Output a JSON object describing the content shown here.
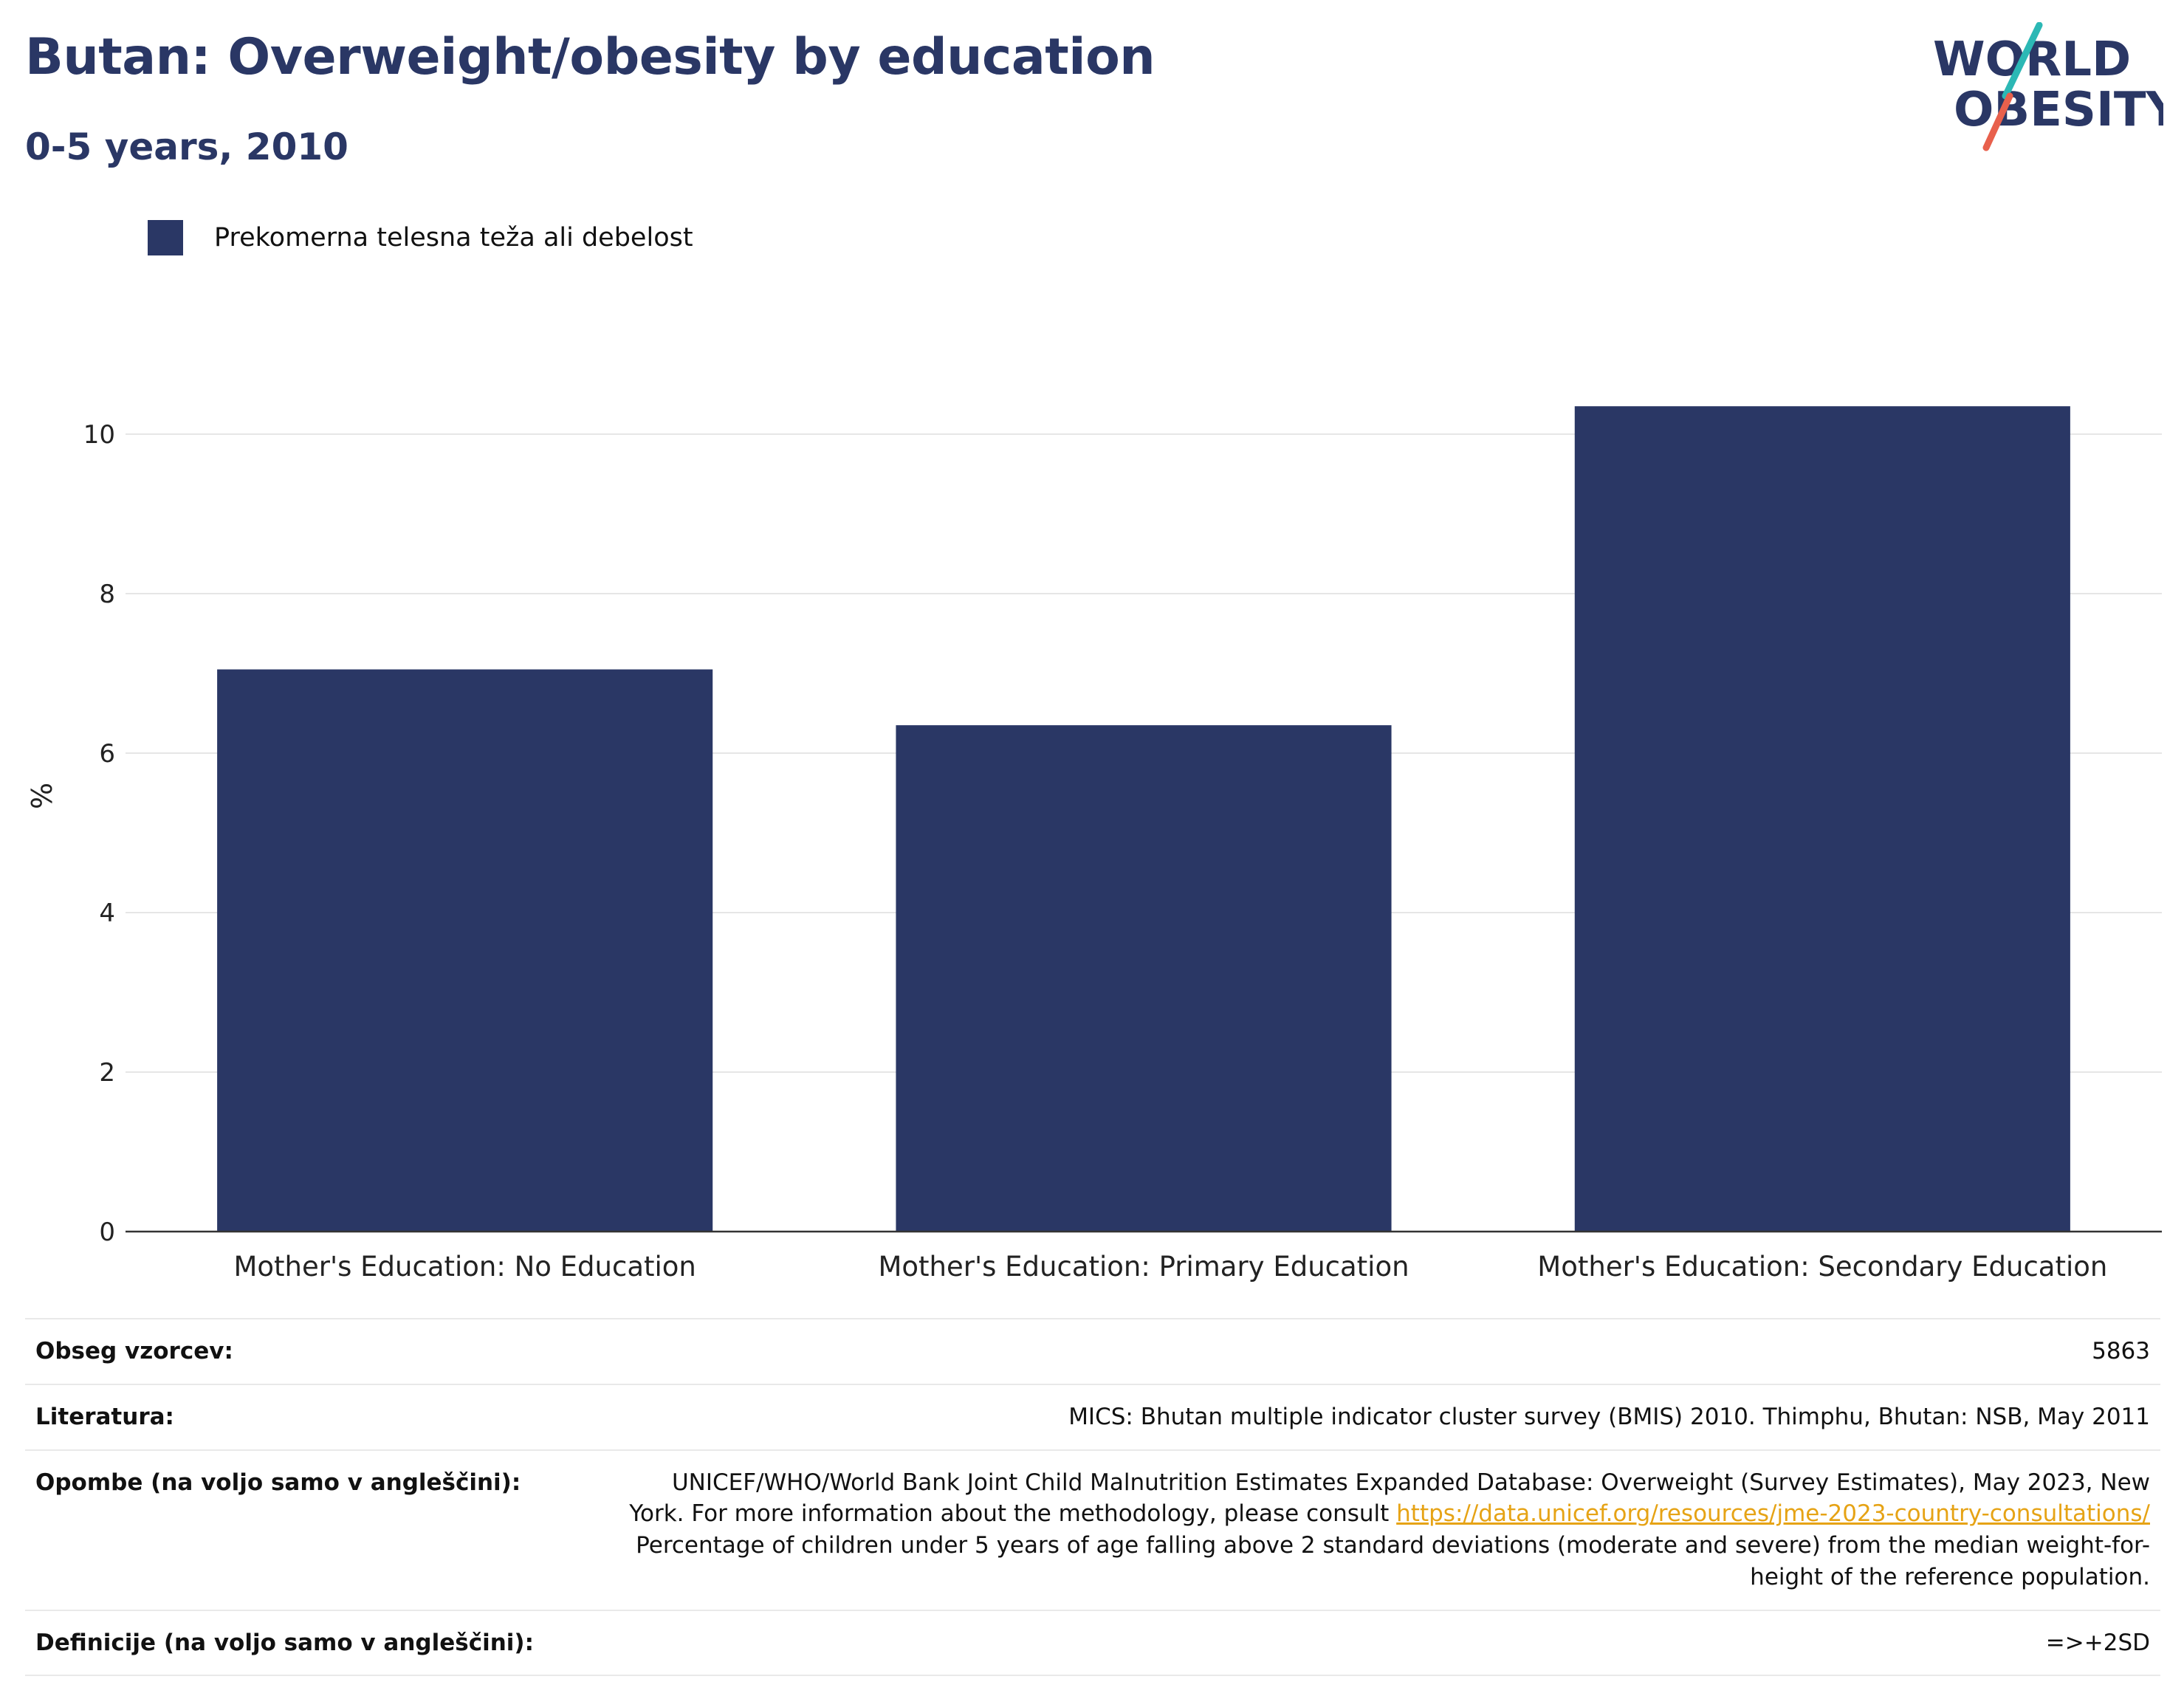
{
  "header": {
    "title": "Butan: Overweight/obesity by education",
    "subtitle": "0-5 years, 2010"
  },
  "logo": {
    "text_line1": "WORLD",
    "text_line2": "OBESITY",
    "colors": {
      "text": "#2a3765",
      "slash_top": "#2cb8b5",
      "slash_bottom": "#e8604c"
    }
  },
  "legend": {
    "label": "Prekomerna telesna teža ali debelost",
    "color": "#2a3765"
  },
  "chart_data": {
    "type": "bar",
    "categories": [
      "Mother's Education: No Education",
      "Mother's Education: Primary Education",
      "Mother's Education: Secondary Education"
    ],
    "series": [
      {
        "name": "Prekomerna telesna teža ali debelost",
        "values": [
          7.05,
          6.35,
          10.35
        ]
      }
    ],
    "ylabel": "%",
    "xlabel": "",
    "ylim": [
      0,
      11
    ],
    "yticks": [
      0,
      2,
      4,
      6,
      8,
      10
    ],
    "grid": true,
    "legend_position": "top-left",
    "bar_color": "#2a3765"
  },
  "info": {
    "sample_size_label": "Obseg vzorcev:",
    "sample_size_value": "5863",
    "literature_label": "Literatura:",
    "literature_value": "MICS: Bhutan multiple indicator cluster survey (BMIS) 2010. Thimphu, Bhutan: NSB, May 2011",
    "notes_label": "Opombe (na voljo samo v angleščini):",
    "notes_text_1": "UNICEF/WHO/World Bank Joint Child Malnutrition Estimates Expanded Database: Overweight (Survey Estimates), May 2023, New York. For more information about the methodology, please consult ",
    "notes_link": "https://data.unicef.org/resources/jme-2023-country-consultations/",
    "notes_text_2": "Percentage of children under 5 years of age falling above 2 standard deviations (moderate and severe) from the median weight-for-height of the reference population.",
    "definitions_label": "Definicije (na voljo samo v angleščini):",
    "definitions_value": "=>+2SD"
  }
}
